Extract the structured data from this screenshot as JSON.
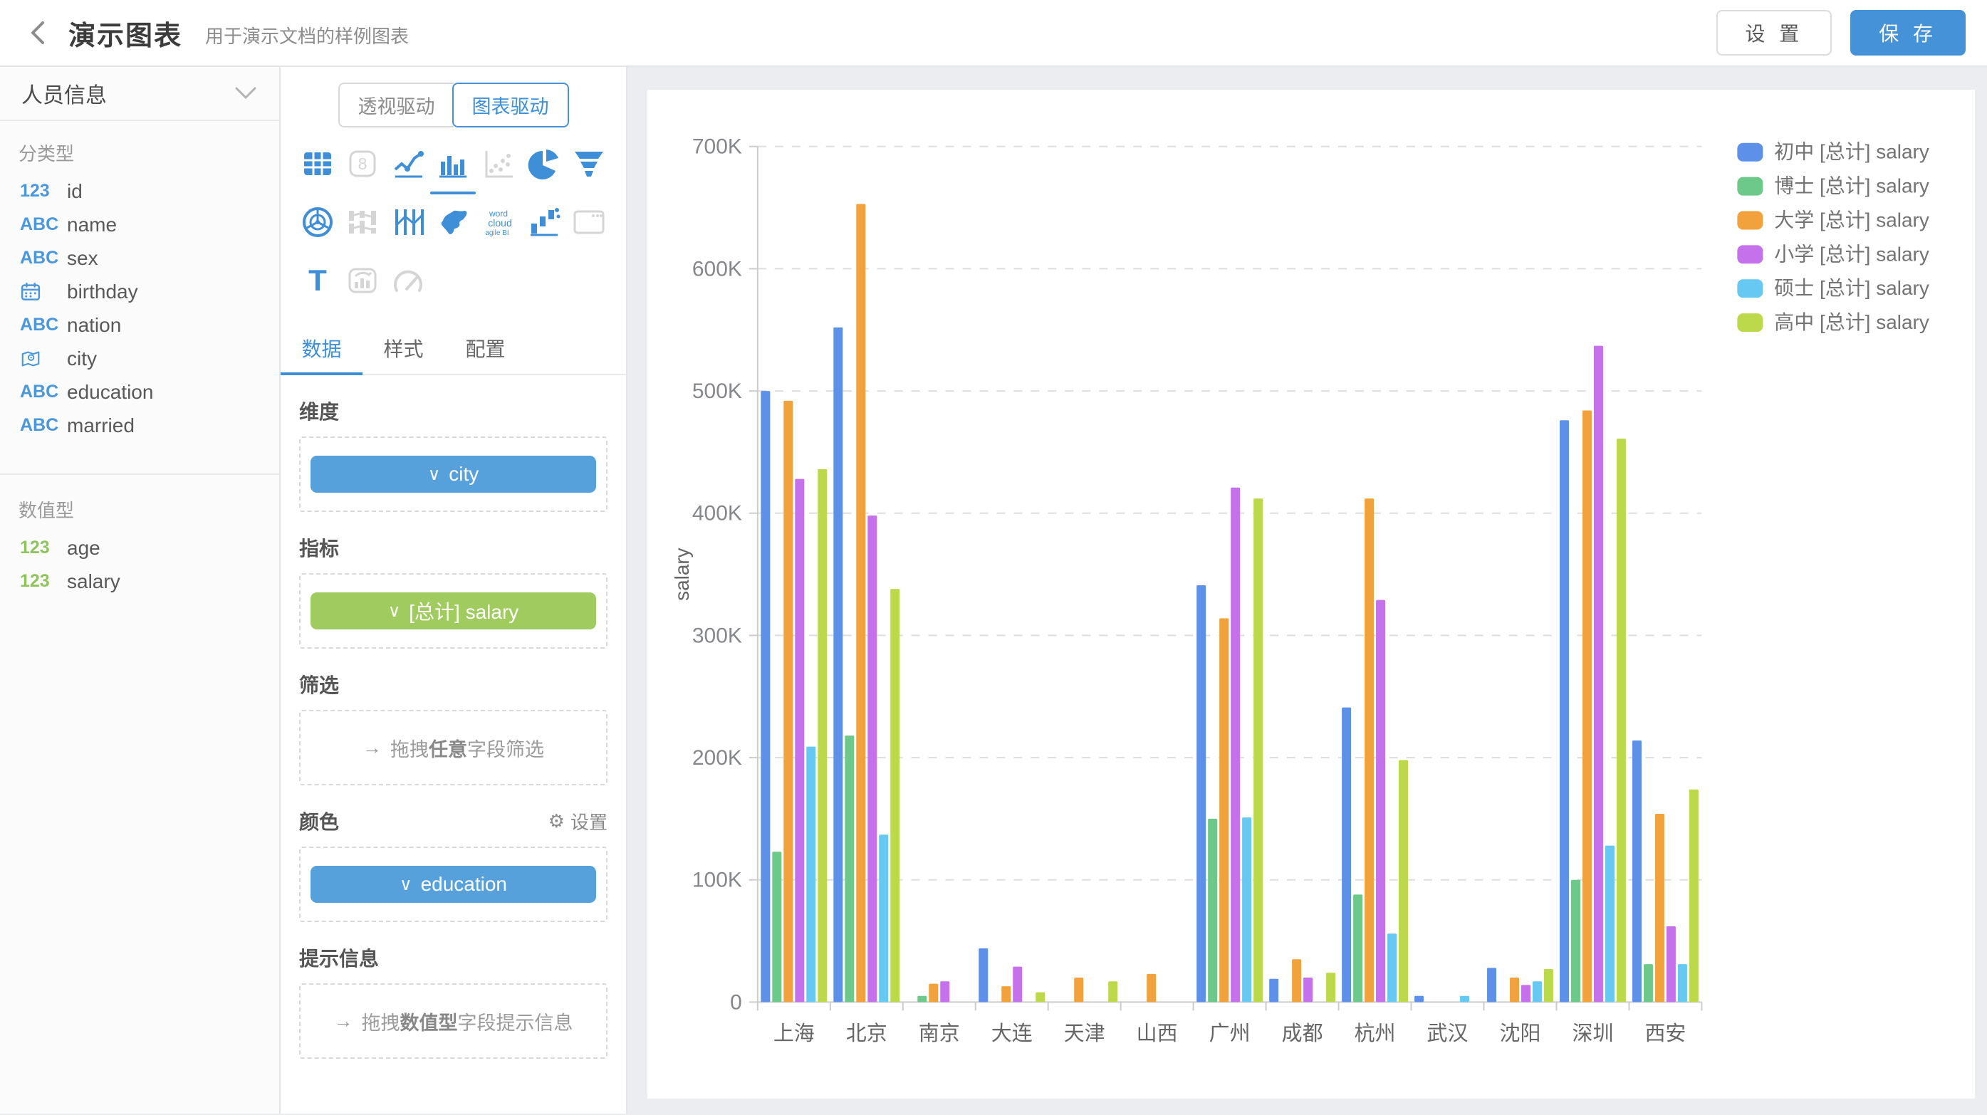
{
  "header": {
    "title": "演示图表",
    "subtitle": "用于演示文档的样例图表",
    "settings_label": "设 置",
    "save_label": "保 存"
  },
  "sidebar": {
    "dataset_title": "人员信息",
    "sections": [
      {
        "title": "分类型",
        "fields": [
          {
            "icon": "number-field-icon",
            "glyph": "123",
            "glyph_color": "blue",
            "label": "id"
          },
          {
            "icon": "text-field-icon",
            "glyph": "ABC",
            "glyph_color": "blue",
            "label": "name"
          },
          {
            "icon": "text-field-icon",
            "glyph": "ABC",
            "glyph_color": "blue",
            "label": "sex"
          },
          {
            "icon": "calendar-icon",
            "glyph": "",
            "glyph_color": "blue",
            "label": "birthday"
          },
          {
            "icon": "text-field-icon",
            "glyph": "ABC",
            "glyph_color": "blue",
            "label": "nation"
          },
          {
            "icon": "map-pin-icon",
            "glyph": "",
            "glyph_color": "blue",
            "label": "city"
          },
          {
            "icon": "text-field-icon",
            "glyph": "ABC",
            "glyph_color": "blue",
            "label": "education"
          },
          {
            "icon": "text-field-icon",
            "glyph": "ABC",
            "glyph_color": "blue",
            "label": "married"
          }
        ]
      },
      {
        "title": "数值型",
        "fields": [
          {
            "icon": "number-field-icon",
            "glyph": "123",
            "glyph_color": "green",
            "label": "age"
          },
          {
            "icon": "number-field-icon",
            "glyph": "123",
            "glyph_color": "green",
            "label": "salary"
          }
        ]
      }
    ]
  },
  "builder": {
    "mode_tabs": [
      {
        "label": "透视驱动",
        "selected": false
      },
      {
        "label": "图表驱动",
        "selected": true
      }
    ],
    "chart_icons": [
      {
        "name": "table",
        "enabled": true,
        "selected": false
      },
      {
        "name": "kpi-card",
        "enabled": false,
        "selected": false
      },
      {
        "name": "line-chart",
        "enabled": true,
        "selected": false
      },
      {
        "name": "bar-chart",
        "enabled": true,
        "selected": true
      },
      {
        "name": "scatter",
        "enabled": false,
        "selected": false
      },
      {
        "name": "pie-chart",
        "enabled": true,
        "selected": false
      },
      {
        "name": "funnel",
        "enabled": true,
        "selected": false
      },
      {
        "name": "radar",
        "enabled": true,
        "selected": false
      },
      {
        "name": "sankey",
        "enabled": false,
        "selected": false
      },
      {
        "name": "parallel",
        "enabled": true,
        "selected": false
      },
      {
        "name": "china-map",
        "enabled": true,
        "selected": false
      },
      {
        "name": "word-cloud",
        "enabled": true,
        "selected": false
      },
      {
        "name": "waterfall",
        "enabled": true,
        "selected": false
      },
      {
        "name": "iframe",
        "enabled": false,
        "selected": false
      },
      {
        "name": "text",
        "enabled": true,
        "selected": false
      },
      {
        "name": "image-chart",
        "enabled": false,
        "selected": false
      },
      {
        "name": "gauge",
        "enabled": false,
        "selected": false
      }
    ],
    "tabs": [
      {
        "label": "数据",
        "active": true
      },
      {
        "label": "样式",
        "active": false
      },
      {
        "label": "配置",
        "active": false
      }
    ],
    "dimension": {
      "title": "维度",
      "chip": {
        "label": "city",
        "color": "blue"
      }
    },
    "measure": {
      "title": "指标",
      "chip": {
        "label": "[总计] salary",
        "color": "green"
      }
    },
    "filter": {
      "title": "筛选",
      "hint_prefix": "拖拽",
      "hint_bold": "任意",
      "hint_suffix": "字段筛选"
    },
    "color": {
      "title": "颜色",
      "action_label": "设置",
      "chip": {
        "label": "education",
        "color": "blue"
      }
    },
    "tooltip": {
      "title": "提示信息",
      "hint_prefix": "拖拽",
      "hint_bold": "数值型",
      "hint_suffix": "字段提示信息"
    }
  },
  "chart_data": {
    "type": "bar",
    "title": "",
    "xlabel": "",
    "ylabel": "salary",
    "ylim": [
      0,
      700000
    ],
    "y_tick_step": 100000,
    "y_tick_suffix": "K",
    "grid": "dashed-horizontal",
    "legend_position": "right",
    "categories": [
      "上海",
      "北京",
      "南京",
      "大连",
      "天津",
      "山西",
      "广州",
      "成都",
      "杭州",
      "武汉",
      "沈阳",
      "深圳",
      "西安"
    ],
    "series": [
      {
        "name": "初中 [总计] salary",
        "color": "#5C90E9",
        "values": [
          500000,
          552000,
          0,
          44000,
          0,
          0,
          341000,
          19000,
          241000,
          5000,
          28000,
          476000,
          214000
        ]
      },
      {
        "name": "博士 [总计] salary",
        "color": "#6DC98A",
        "values": [
          123000,
          218000,
          5000,
          0,
          0,
          0,
          150000,
          0,
          88000,
          0,
          0,
          100000,
          31000
        ]
      },
      {
        "name": "大学 [总计] salary",
        "color": "#F2A23D",
        "values": [
          492000,
          653000,
          15000,
          13000,
          20000,
          23000,
          314000,
          35000,
          412000,
          0,
          20000,
          484000,
          154000
        ]
      },
      {
        "name": "小学 [总计] salary",
        "color": "#C671EC",
        "values": [
          428000,
          398000,
          17000,
          29000,
          0,
          0,
          421000,
          20000,
          329000,
          0,
          14000,
          537000,
          62000
        ]
      },
      {
        "name": "硕士 [总计] salary",
        "color": "#67C8F2",
        "values": [
          209000,
          137000,
          0,
          0,
          0,
          0,
          151000,
          0,
          56000,
          5000,
          17000,
          128000,
          31000
        ]
      },
      {
        "name": "高中 [总计] salary",
        "color": "#BCD94B",
        "values": [
          436000,
          338000,
          0,
          8000,
          17000,
          0,
          412000,
          24000,
          198000,
          0,
          27000,
          461000,
          174000
        ]
      }
    ]
  },
  "ui_colors": {
    "accent_blue": "#3E8FD8",
    "save_button_blue": "#4592D9",
    "chip_blue": "#56A0DC",
    "chip_green": "#9FCB5F",
    "disabled_icon_gray": "#d5d5d5"
  }
}
